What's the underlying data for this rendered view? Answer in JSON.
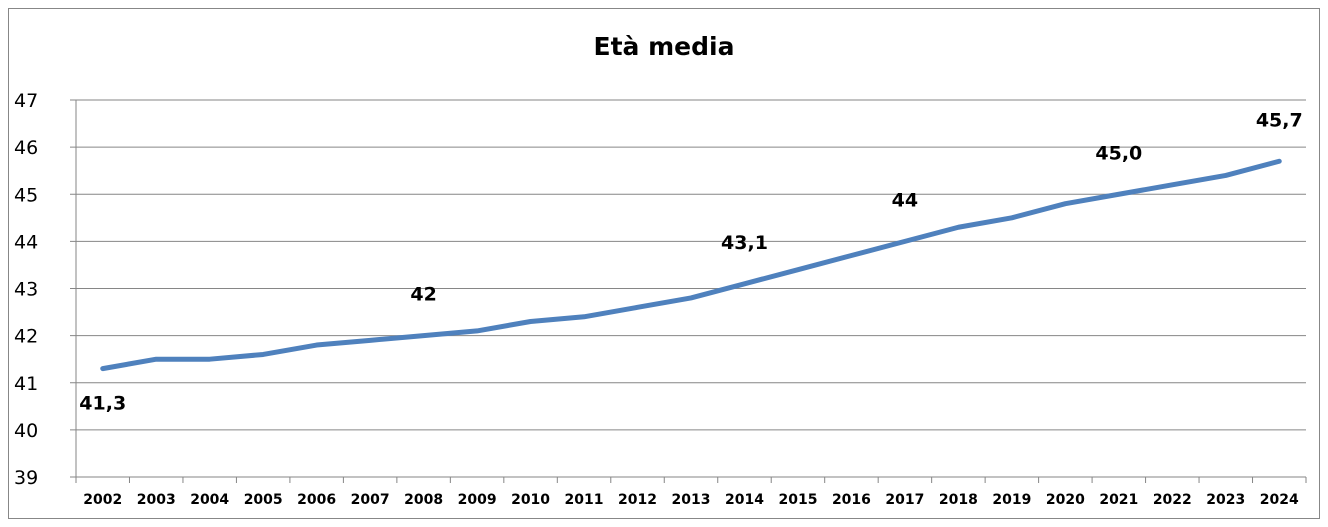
{
  "chart_data": {
    "type": "line",
    "title": "Età media",
    "xlabel": "",
    "ylabel": "",
    "categories": [
      "2002",
      "2003",
      "2004",
      "2005",
      "2006",
      "2007",
      "2008",
      "2009",
      "2010",
      "2011",
      "2012",
      "2013",
      "2014",
      "2015",
      "2016",
      "2017",
      "2018",
      "2019",
      "2020",
      "2021",
      "2022",
      "2023",
      "2024"
    ],
    "series": [
      {
        "values": [
          41.3,
          41.5,
          41.5,
          41.6,
          41.8,
          41.9,
          42.0,
          42.1,
          42.3,
          42.4,
          42.6,
          42.8,
          43.1,
          43.4,
          43.7,
          44.0,
          44.3,
          44.5,
          44.8,
          45.0,
          45.2,
          45.4,
          45.7
        ],
        "color": "#4f81bd"
      }
    ],
    "data_labels": [
      {
        "index": 0,
        "text": "41,3",
        "position": "below"
      },
      {
        "index": 6,
        "text": "42",
        "position": "above"
      },
      {
        "index": 12,
        "text": "43,1",
        "position": "above"
      },
      {
        "index": 15,
        "text": "44",
        "position": "above"
      },
      {
        "index": 19,
        "text": "45,0",
        "position": "above"
      },
      {
        "index": 22,
        "text": "45,7",
        "position": "above"
      }
    ],
    "ylim": [
      39,
      47
    ],
    "yticks": [
      39,
      40,
      41,
      42,
      43,
      44,
      45,
      46,
      47
    ],
    "grid": true,
    "legend": "none",
    "colors": {
      "line": "#4f81bd",
      "grid": "#868686",
      "axis": "#868686"
    }
  }
}
